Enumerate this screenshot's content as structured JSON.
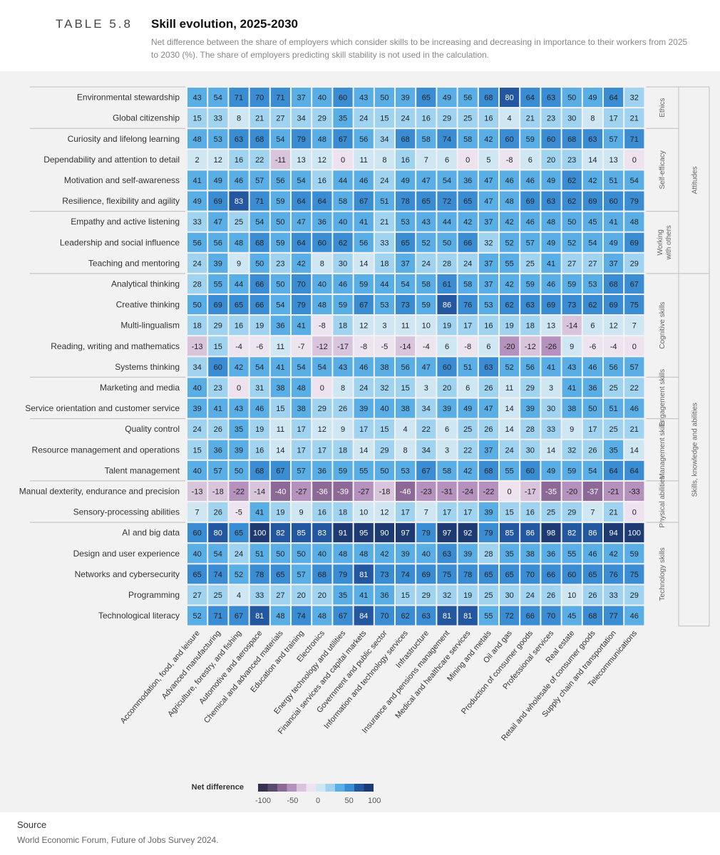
{
  "header": {
    "table_label": "TABLE 5.8",
    "title": "Skill evolution, 2025-2030",
    "subtitle": "Net difference between the share of employers which consider skills to be increasing and decreasing in importance to their workers from 2025 to 2030 (%). The share of employers predicting skill stability is not used in the calculation."
  },
  "source": {
    "label": "Source",
    "text": "World Economic Forum, Future of Jobs Survey 2024."
  },
  "colors": {
    "positive_scale": [
      "#cfe6f3",
      "#9fd3ef",
      "#5aaee6",
      "#3a8cd3",
      "#23579f",
      "#1d3a73"
    ],
    "negative_scale": [
      "#ece4ee",
      "#d8c5dc",
      "#b591bd",
      "#8c6996",
      "#5b4a70",
      "#3a3150"
    ],
    "zero": "#ede2ee",
    "panel": "#f2f2f2"
  },
  "chart_data": {
    "type": "heatmap",
    "title": "Skill evolution, 2025-2030",
    "value_label": "Net difference",
    "color_range": [
      -100,
      100
    ],
    "legend_ticks": [
      "-100",
      "-50",
      "0",
      "50",
      "100"
    ],
    "columns": [
      "Accommodation, food, and leisure",
      "Advanced manufacturing",
      "Agriculture, forestry, and fishing",
      "Automotive and aerospace",
      "Chemical and advanced materials",
      "Education and training",
      "Electronics",
      "Energy technology and utilities",
      "Financial services and capital markets",
      "Government and public sector",
      "Information and technology services",
      "Infrastructure",
      "Insurance and pensions management",
      "Medical and healthcare services",
      "Mining and metals",
      "Oil and gas",
      "Production of consumer goods",
      "Professional services",
      "Real estate",
      "Retail and wholesale of consumer goods",
      "Supply chain and transportation",
      "Telecommunications"
    ],
    "rows": [
      "Environmental stewardship",
      "Global citizenship",
      "Curiosity and lifelong learning",
      "Dependability and attention to detail",
      "Motivation and self-awareness",
      "Resilience, flexibility and agility",
      "Empathy and active listening",
      "Leadership and social influence",
      "Teaching and mentoring",
      "Analytical thinking",
      "Creative thinking",
      "Multi-lingualism",
      "Reading, writing and mathematics",
      "Systems thinking",
      "Marketing and media",
      "Service orientation and customer service",
      "Quality control",
      "Resource management and operations",
      "Talent management",
      "Manual dexterity, endurance and precision",
      "Sensory-processing abilities",
      "AI and big data",
      "Design and user experience",
      "Networks and cybersecurity",
      "Programming",
      "Technological literacy"
    ],
    "values": [
      [
        43,
        54,
        71,
        70,
        71,
        37,
        40,
        60,
        43,
        50,
        39,
        65,
        49,
        56,
        68,
        80,
        64,
        63,
        50,
        49,
        64,
        32
      ],
      [
        15,
        33,
        8,
        21,
        27,
        34,
        29,
        35,
        24,
        15,
        24,
        16,
        29,
        25,
        16,
        4,
        21,
        23,
        30,
        8,
        17,
        21
      ],
      [
        48,
        53,
        63,
        68,
        54,
        79,
        48,
        67,
        56,
        34,
        68,
        58,
        74,
        58,
        42,
        60,
        59,
        60,
        68,
        63,
        57,
        71
      ],
      [
        2,
        12,
        16,
        22,
        -11,
        13,
        12,
        0,
        11,
        8,
        16,
        7,
        6,
        0,
        5,
        -8,
        6,
        20,
        23,
        14,
        13,
        0
      ],
      [
        41,
        49,
        46,
        57,
        56,
        54,
        16,
        44,
        46,
        24,
        49,
        47,
        54,
        36,
        47,
        46,
        46,
        49,
        62,
        42,
        51,
        54
      ],
      [
        49,
        69,
        83,
        71,
        59,
        64,
        64,
        58,
        67,
        51,
        78,
        65,
        72,
        65,
        47,
        48,
        69,
        63,
        62,
        69,
        60,
        79
      ],
      [
        33,
        47,
        25,
        54,
        50,
        47,
        36,
        40,
        41,
        21,
        53,
        43,
        44,
        42,
        37,
        42,
        46,
        48,
        50,
        45,
        41,
        48
      ],
      [
        56,
        56,
        48,
        68,
        59,
        64,
        60,
        62,
        56,
        33,
        65,
        52,
        50,
        66,
        32,
        52,
        57,
        49,
        52,
        54,
        49,
        69
      ],
      [
        24,
        39,
        9,
        50,
        23,
        42,
        8,
        30,
        14,
        18,
        37,
        24,
        28,
        24,
        37,
        55,
        25,
        41,
        27,
        27,
        37,
        29
      ],
      [
        28,
        55,
        44,
        66,
        50,
        70,
        40,
        46,
        59,
        44,
        54,
        58,
        61,
        58,
        37,
        42,
        59,
        46,
        59,
        53,
        68,
        67
      ],
      [
        50,
        69,
        65,
        66,
        54,
        79,
        48,
        59,
        67,
        53,
        73,
        59,
        86,
        76,
        53,
        62,
        63,
        69,
        73,
        62,
        69,
        75
      ],
      [
        18,
        29,
        16,
        19,
        36,
        41,
        -8,
        18,
        12,
        3,
        11,
        10,
        19,
        17,
        16,
        19,
        18,
        13,
        -14,
        6,
        12,
        7
      ],
      [
        -13,
        15,
        -4,
        -6,
        11,
        -7,
        -12,
        -17,
        -8,
        -5,
        -14,
        -4,
        6,
        -8,
        6,
        -20,
        -12,
        -26,
        9,
        -6,
        -4,
        0
      ],
      [
        34,
        60,
        42,
        54,
        41,
        54,
        54,
        43,
        46,
        38,
        56,
        47,
        60,
        51,
        63,
        52,
        56,
        41,
        43,
        46,
        56,
        57
      ],
      [
        40,
        23,
        0,
        31,
        38,
        48,
        0,
        8,
        24,
        32,
        15,
        3,
        20,
        6,
        26,
        11,
        29,
        3,
        41,
        36,
        25,
        22
      ],
      [
        39,
        41,
        43,
        46,
        15,
        38,
        29,
        26,
        39,
        40,
        38,
        34,
        39,
        49,
        47,
        14,
        39,
        30,
        38,
        50,
        51,
        46
      ],
      [
        24,
        26,
        35,
        19,
        11,
        17,
        12,
        9,
        17,
        15,
        4,
        22,
        6,
        25,
        26,
        14,
        28,
        33,
        9,
        17,
        25,
        21
      ],
      [
        15,
        36,
        39,
        16,
        14,
        17,
        17,
        18,
        14,
        29,
        8,
        34,
        3,
        22,
        37,
        24,
        30,
        14,
        32,
        26,
        35,
        14
      ],
      [
        40,
        57,
        50,
        68,
        67,
        57,
        36,
        59,
        55,
        50,
        53,
        67,
        58,
        42,
        68,
        55,
        60,
        49,
        59,
        54,
        64,
        64
      ],
      [
        -13,
        -18,
        -22,
        -14,
        -40,
        -27,
        -36,
        -39,
        -27,
        -18,
        -46,
        -23,
        -31,
        -24,
        -22,
        0,
        -17,
        -35,
        -20,
        -37,
        -21,
        -33
      ],
      [
        7,
        26,
        -5,
        41,
        19,
        9,
        16,
        18,
        10,
        12,
        17,
        7,
        17,
        17,
        39,
        15,
        16,
        25,
        29,
        7,
        21,
        0
      ],
      [
        60,
        80,
        65,
        100,
        82,
        85,
        83,
        91,
        95,
        90,
        97,
        79,
        97,
        92,
        79,
        85,
        86,
        98,
        82,
        86,
        94,
        100
      ],
      [
        40,
        54,
        24,
        51,
        50,
        50,
        40,
        48,
        48,
        42,
        39,
        40,
        63,
        39,
        28,
        35,
        38,
        36,
        55,
        46,
        42,
        59
      ],
      [
        65,
        74,
        52,
        78,
        65,
        57,
        68,
        79,
        81,
        73,
        74,
        69,
        75,
        78,
        65,
        65,
        70,
        66,
        60,
        65,
        76,
        75
      ],
      [
        27,
        25,
        4,
        33,
        27,
        20,
        20,
        35,
        41,
        36,
        15,
        29,
        32,
        19,
        25,
        30,
        24,
        26,
        10,
        26,
        33,
        29
      ],
      [
        52,
        71,
        67,
        81,
        48,
        74,
        48,
        67,
        84,
        70,
        62,
        63,
        81,
        81,
        55,
        72,
        66,
        70,
        45,
        68,
        77,
        46
      ]
    ],
    "subgroups": [
      {
        "label": "Ethics",
        "rows": [
          0,
          1
        ]
      },
      {
        "label": "Self-efficacy",
        "rows": [
          2,
          5
        ]
      },
      {
        "label": "Working with others",
        "rows": [
          6,
          8
        ]
      },
      {
        "label": "Cognitive skills",
        "rows": [
          9,
          13
        ]
      },
      {
        "label": "Engagement skills",
        "rows": [
          14,
          15
        ]
      },
      {
        "label": "Management skills",
        "rows": [
          16,
          18
        ]
      },
      {
        "label": "Physical abilities",
        "rows": [
          19,
          20
        ]
      },
      {
        "label": "Technology skills",
        "rows": [
          21,
          25
        ]
      }
    ],
    "groups": [
      {
        "label": "Attitudes",
        "rows": [
          0,
          8
        ]
      },
      {
        "label": "Skills, knowledge and abilities",
        "rows": [
          9,
          25
        ]
      }
    ]
  }
}
